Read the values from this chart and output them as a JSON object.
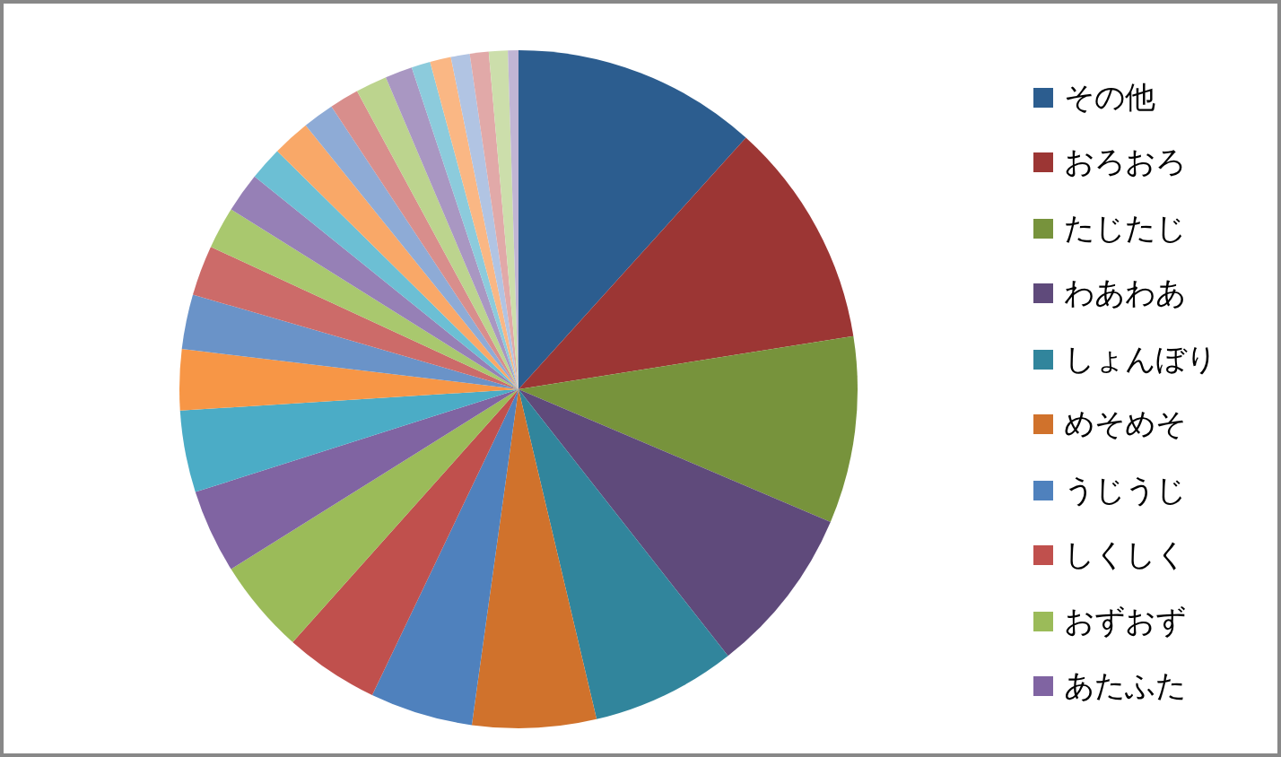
{
  "chart_data": {
    "type": "pie",
    "legend": "right",
    "categories": [
      "その他",
      "おろおろ",
      "たじたじ",
      "わあわあ",
      "しょんぼり",
      "めそめそ",
      "うじうじ",
      "しくしく",
      "おずおず",
      "あたふた",
      null,
      null,
      null,
      null,
      null,
      null,
      null,
      null,
      null,
      null,
      null,
      null,
      null,
      null,
      null,
      null,
      null,
      null
    ],
    "values": [
      11.7,
      10.8,
      8.9,
      8.0,
      6.9,
      5.9,
      4.9,
      4.5,
      4.5,
      4.0,
      3.9,
      2.9,
      2.6,
      2.4,
      2.0,
      1.9,
      1.6,
      1.8,
      1.5,
      1.4,
      1.5,
      1.3,
      0.9,
      1.0,
      0.9,
      0.9,
      0.9,
      0.5
    ],
    "colors": [
      "#2c5d8f",
      "#9c3634",
      "#77933c",
      "#5f4a7b",
      "#31859c",
      "#d0722c",
      "#4f81bd",
      "#c0504d",
      "#9bbb59",
      "#8064a2",
      "#4bacc6",
      "#f79646",
      "#6a93c8",
      "#cc6b69",
      "#a9c86e",
      "#9680b6",
      "#6cbfd4",
      "#f9a868",
      "#8eabd6",
      "#d88e8c",
      "#bcd48e",
      "#a997c2",
      "#8ccbdc",
      "#fab784",
      "#b1c4e3",
      "#e1a9a8",
      "#ccdeab",
      "#c0b5d4"
    ]
  }
}
